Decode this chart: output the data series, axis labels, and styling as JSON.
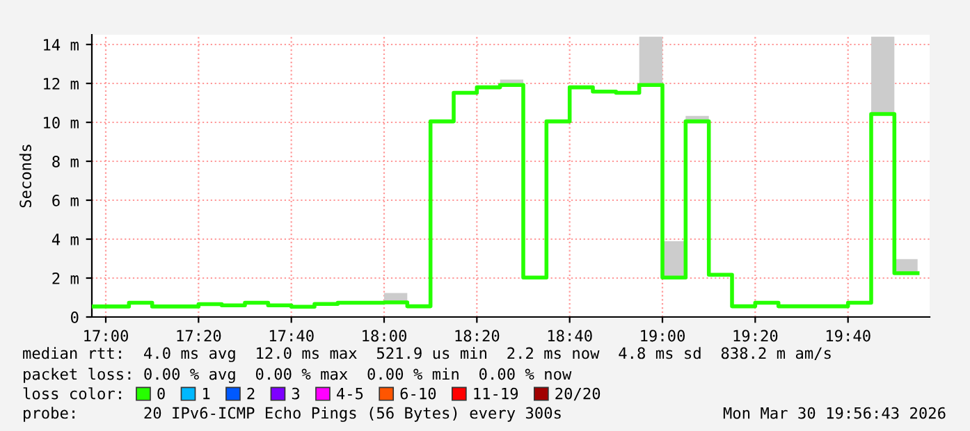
{
  "chart_data": {
    "type": "step",
    "ylabel": "Seconds",
    "legend_title": "loss color:",
    "legend": "bottom",
    "grid": true,
    "x": [
      16.95,
      17.0,
      17.0833,
      17.1667,
      17.25,
      17.3333,
      17.4167,
      17.5,
      17.5833,
      17.6667,
      17.75,
      17.8333,
      17.9167,
      18.0,
      18.0833,
      18.1667,
      18.25,
      18.3333,
      18.4167,
      18.5,
      18.5833,
      18.6667,
      18.75,
      18.8333,
      18.9167,
      19.0,
      19.0833,
      19.1667,
      19.25,
      19.3333,
      19.4167,
      19.5,
      19.5833,
      19.6667,
      19.75,
      19.8333,
      19.9167
    ],
    "xlim": [
      16.95,
      19.96
    ],
    "xticks": [
      {
        "value": 17.0,
        "label": "17:00"
      },
      {
        "value": 17.3333,
        "label": "17:20"
      },
      {
        "value": 17.6667,
        "label": "17:40"
      },
      {
        "value": 18.0,
        "label": "18:00"
      },
      {
        "value": 18.3333,
        "label": "18:20"
      },
      {
        "value": 18.6667,
        "label": "18:40"
      },
      {
        "value": 19.0,
        "label": "19:00"
      },
      {
        "value": 19.3333,
        "label": "19:20"
      },
      {
        "value": 19.6667,
        "label": "19:40"
      }
    ],
    "ylim": [
      0,
      14.5
    ],
    "yticks": [
      0,
      {
        "value": 2,
        "label": "2 m"
      },
      {
        "value": 4,
        "label": "4 m"
      },
      {
        "value": 6,
        "label": "6 m"
      },
      {
        "value": 8,
        "label": "8 m"
      },
      {
        "value": 10,
        "label": "10 m"
      },
      {
        "value": 12,
        "label": "12 m"
      },
      {
        "value": 14,
        "label": "14 m"
      }
    ],
    "series": [
      {
        "name": "0",
        "color": "#26ff00",
        "lower": [
          null,
          null,
          null,
          null,
          null,
          null,
          null,
          null,
          null,
          null,
          null,
          null,
          null,
          0.75,
          null,
          null,
          null,
          null,
          11.92,
          null,
          null,
          null,
          null,
          null,
          11.92,
          2.03,
          10.05,
          null,
          null,
          null,
          null,
          null,
          null,
          null,
          10.43,
          2.25,
          2.25
        ],
        "upper": [
          null,
          null,
          null,
          null,
          null,
          null,
          null,
          null,
          null,
          null,
          null,
          null,
          null,
          1.23,
          null,
          null,
          null,
          null,
          12.2,
          null,
          null,
          null,
          null,
          null,
          14.4,
          3.89,
          10.33,
          null,
          null,
          null,
          null,
          null,
          null,
          null,
          14.4,
          2.97,
          2.97
        ],
        "values": [
          0.54,
          0.54,
          0.73,
          0.54,
          0.54,
          0.66,
          0.6,
          0.73,
          0.6,
          0.53,
          0.67,
          0.73,
          0.73,
          0.75,
          0.55,
          10.05,
          11.52,
          11.8,
          11.92,
          2.03,
          10.05,
          11.8,
          11.58,
          11.52,
          11.92,
          2.03,
          10.05,
          2.17,
          0.55,
          0.73,
          0.55,
          0.55,
          0.55,
          0.73,
          10.43,
          2.25,
          2.25
        ]
      },
      {
        "name": "1",
        "color": "#00b8ff",
        "values": [
          null,
          null,
          null,
          null,
          null,
          null,
          null,
          null,
          null,
          null,
          null,
          null,
          null,
          null,
          null,
          null,
          null,
          null,
          null,
          null,
          null,
          null,
          null,
          null,
          null,
          null,
          null,
          null,
          null,
          null,
          null,
          null,
          null,
          null,
          null,
          null,
          null
        ]
      },
      {
        "name": "2",
        "color": "#0059ff",
        "values": [
          null,
          null,
          null,
          null,
          null,
          null,
          null,
          null,
          null,
          null,
          null,
          null,
          null,
          null,
          null,
          null,
          null,
          null,
          null,
          null,
          null,
          null,
          null,
          null,
          null,
          null,
          null,
          null,
          null,
          null,
          null,
          null,
          null,
          null,
          null,
          null,
          null
        ]
      },
      {
        "name": "3",
        "color": "#7e00ff",
        "values": [
          null,
          null,
          null,
          null,
          null,
          null,
          null,
          null,
          null,
          null,
          null,
          null,
          null,
          null,
          null,
          null,
          null,
          null,
          null,
          null,
          null,
          null,
          null,
          null,
          null,
          null,
          null,
          null,
          null,
          null,
          null,
          null,
          null,
          null,
          null,
          null,
          null
        ]
      },
      {
        "name": "4-5",
        "color": "#ff00ff",
        "values": [
          null,
          null,
          null,
          null,
          null,
          null,
          null,
          null,
          null,
          null,
          null,
          null,
          null,
          null,
          null,
          null,
          null,
          null,
          null,
          null,
          null,
          null,
          null,
          null,
          null,
          null,
          null,
          null,
          null,
          null,
          null,
          null,
          null,
          null,
          null,
          null,
          null
        ]
      },
      {
        "name": "6-10",
        "color": "#ff5500",
        "values": [
          null,
          null,
          null,
          null,
          null,
          null,
          null,
          null,
          null,
          null,
          null,
          null,
          null,
          null,
          null,
          null,
          null,
          null,
          null,
          null,
          null,
          null,
          null,
          null,
          null,
          null,
          null,
          null,
          null,
          null,
          null,
          null,
          null,
          null,
          null,
          null,
          null
        ]
      },
      {
        "name": "11-19",
        "color": "#ff0000",
        "values": [
          null,
          null,
          null,
          null,
          null,
          null,
          null,
          null,
          null,
          null,
          null,
          null,
          null,
          null,
          null,
          null,
          null,
          null,
          null,
          null,
          null,
          null,
          null,
          null,
          null,
          null,
          null,
          null,
          null,
          null,
          null,
          null,
          null,
          null,
          null,
          null,
          null
        ]
      },
      {
        "name": "20/20",
        "color": "#a10000",
        "values": [
          null,
          null,
          null,
          null,
          null,
          null,
          null,
          null,
          null,
          null,
          null,
          null,
          null,
          null,
          null,
          null,
          null,
          null,
          null,
          null,
          null,
          null,
          null,
          null,
          null,
          null,
          null,
          null,
          null,
          null,
          null,
          null,
          null,
          null,
          null,
          null,
          null
        ]
      }
    ],
    "annotations": [
      "median rtt:  4.0 ms avg  12.0 ms max  521.9 us min  2.2 ms now  4.8 ms sd  838.2 m am/s",
      "packet loss: 0.00 % avg  0.00 % max  0.00 % min  0.00 % now",
      "probe:       20 IPv6-ICMP Echo Pings (56 Bytes) every 300s",
      "Mon Mar 30 19:56:43 2026"
    ]
  }
}
